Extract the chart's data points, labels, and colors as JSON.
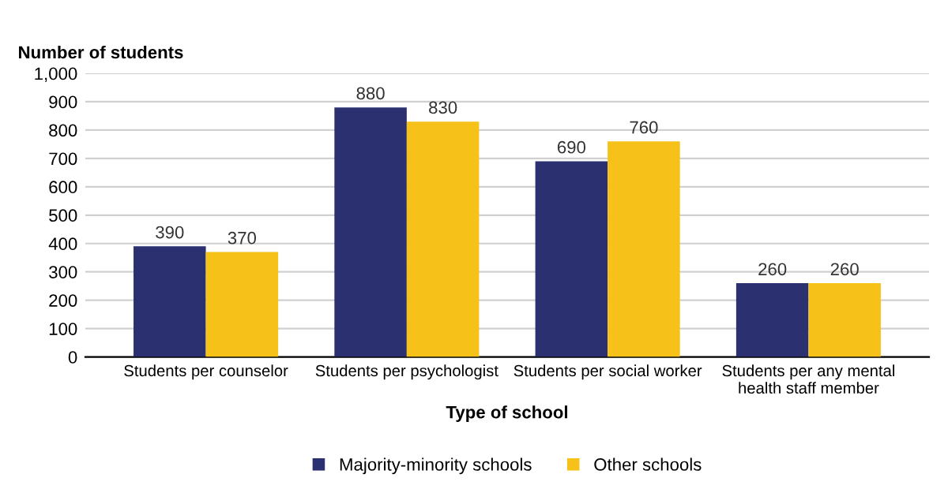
{
  "chart_data": {
    "type": "bar",
    "ylabel": "Number of students",
    "xlabel": "Type of school",
    "categories": [
      "Students per counselor",
      "Students per psychologist",
      "Students per social worker",
      "Students per any mental\nhealth staff member"
    ],
    "series": [
      {
        "name": "Majority-minority schools",
        "color": "#2b3070",
        "values": [
          390,
          880,
          690,
          260
        ]
      },
      {
        "name": "Other schools",
        "color": "#f6c21a",
        "values": [
          370,
          830,
          760,
          260
        ]
      }
    ],
    "ylim": [
      0,
      1000
    ],
    "yticks": [
      0,
      100,
      200,
      300,
      400,
      500,
      600,
      700,
      800,
      900,
      {
        "value": 1000,
        "label": "1,000"
      }
    ],
    "grid": "y",
    "legend": "bottom",
    "data_labels": true
  }
}
